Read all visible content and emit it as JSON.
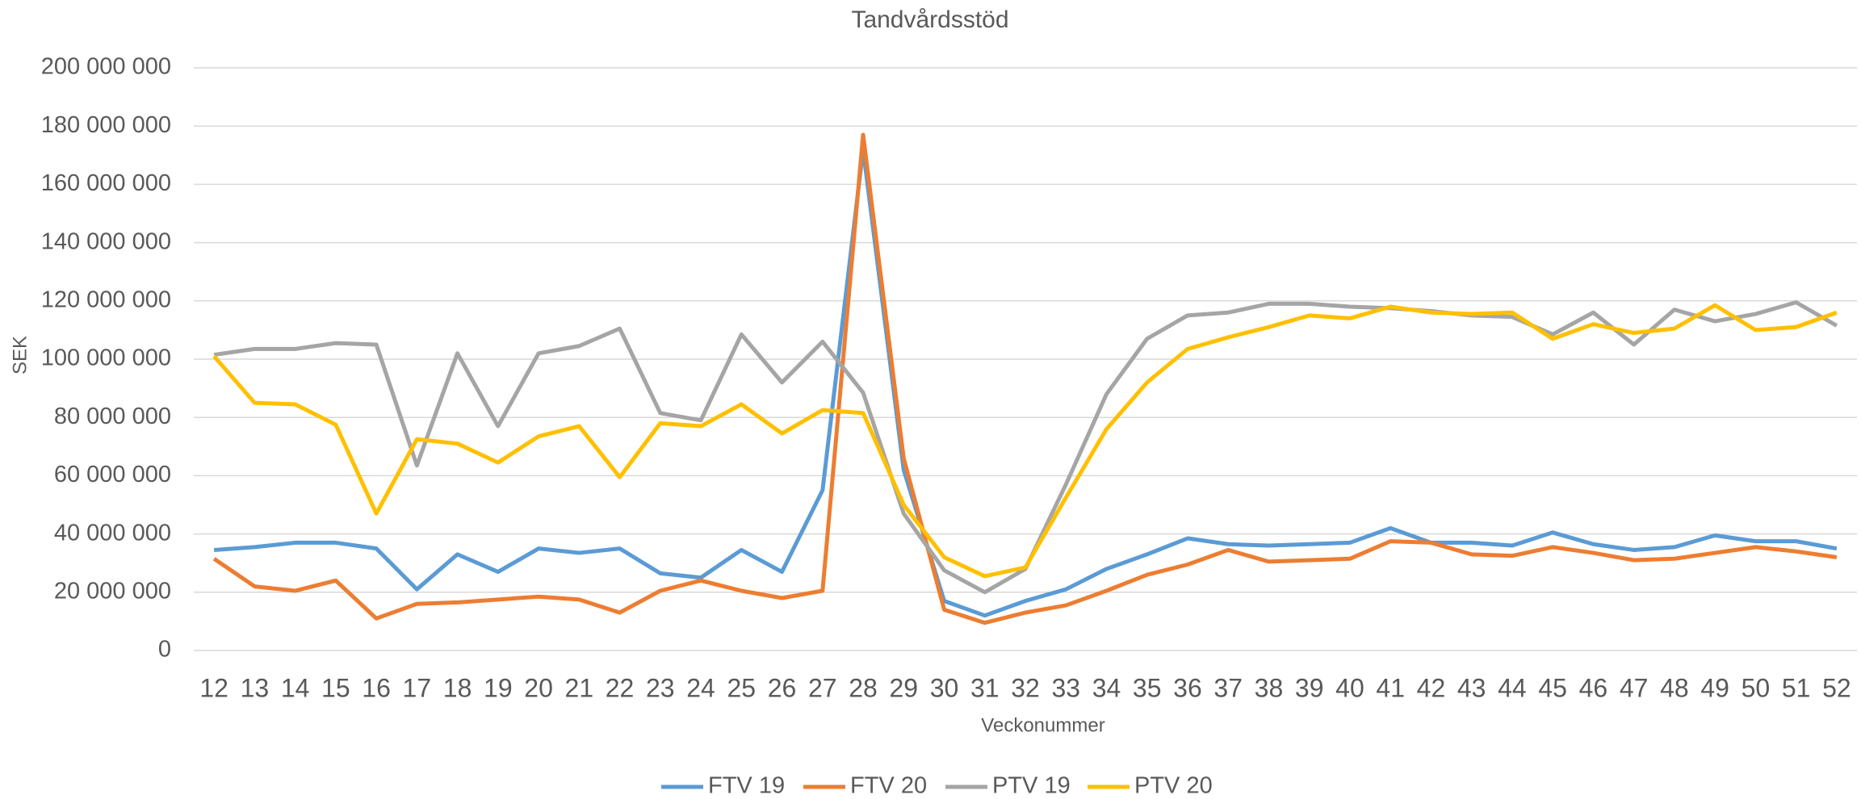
{
  "chart_data": {
    "type": "line",
    "title": "Tandvårdsstöd",
    "x_label": "Veckonummer",
    "y_label": "SEK",
    "categories": [
      "12",
      "13",
      "14",
      "15",
      "16",
      "17",
      "18",
      "19",
      "20",
      "21",
      "22",
      "23",
      "24",
      "25",
      "26",
      "27",
      "28",
      "29",
      "30",
      "31",
      "32",
      "33",
      "34",
      "35",
      "36",
      "37",
      "38",
      "39",
      "40",
      "41",
      "42",
      "43",
      "44",
      "45",
      "46",
      "47",
      "48",
      "49",
      "50",
      "51",
      "52"
    ],
    "series": [
      {
        "name": "FTV 19",
        "color": "#5b9bd5",
        "values": [
          34500000,
          35500000,
          37000000,
          37000000,
          35000000,
          21000000,
          33000000,
          27000000,
          35000000,
          33500000,
          35000000,
          26500000,
          25000000,
          34500000,
          27000000,
          55000000,
          172000000,
          62000000,
          17000000,
          12000000,
          17000000,
          21000000,
          28000000,
          33000000,
          38500000,
          36500000,
          36000000,
          36500000,
          37000000,
          42000000,
          37000000,
          37000000,
          36000000,
          40500000,
          36500000,
          34500000,
          35500000,
          39500000,
          37500000,
          37500000,
          35000000
        ]
      },
      {
        "name": "FTV 20",
        "color": "#ed7d31",
        "values": [
          31500000,
          22000000,
          20500000,
          24000000,
          11000000,
          16000000,
          16500000,
          17500000,
          18500000,
          17500000,
          13000000,
          20500000,
          24000000,
          20500000,
          18000000,
          20500000,
          177000000,
          66000000,
          14000000,
          9500000,
          13000000,
          15500000,
          20500000,
          26000000,
          29500000,
          34500000,
          30500000,
          31000000,
          31500000,
          37500000,
          37000000,
          33000000,
          32500000,
          35500000,
          33500000,
          31000000,
          31500000,
          33500000,
          35500000,
          34000000,
          32000000
        ]
      },
      {
        "name": "PTV 19",
        "color": "#a5a5a5",
        "values": [
          101500000,
          103500000,
          103500000,
          105500000,
          105000000,
          63500000,
          102000000,
          77000000,
          102000000,
          104500000,
          110500000,
          81500000,
          79000000,
          108500000,
          92000000,
          106000000,
          88500000,
          47000000,
          27500000,
          20000000,
          28000000,
          57000000,
          88000000,
          107000000,
          115000000,
          116000000,
          119000000,
          119000000,
          118000000,
          117500000,
          116500000,
          115000000,
          114500000,
          108500000,
          116000000,
          105000000,
          117000000,
          113000000,
          115500000,
          119500000,
          111500000
        ]
      },
      {
        "name": "PTV 20",
        "color": "#ffc000",
        "values": [
          101000000,
          85000000,
          84500000,
          77500000,
          47000000,
          72500000,
          71000000,
          64500000,
          73500000,
          77000000,
          59500000,
          78000000,
          77000000,
          84500000,
          74500000,
          82500000,
          81500000,
          50000000,
          32000000,
          25500000,
          28500000,
          52500000,
          76000000,
          92000000,
          103500000,
          107500000,
          111000000,
          115000000,
          114000000,
          118000000,
          116000000,
          115500000,
          116000000,
          107000000,
          112000000,
          109000000,
          110500000,
          118500000,
          110000000,
          111000000,
          116000000
        ]
      }
    ],
    "ylim": [
      0,
      200000000
    ],
    "yticks": [
      {
        "value": 0,
        "label": "0"
      },
      {
        "value": 20000000,
        "label": "20 000 000"
      },
      {
        "value": 40000000,
        "label": "40 000 000"
      },
      {
        "value": 60000000,
        "label": "60 000 000"
      },
      {
        "value": 80000000,
        "label": "80 000 000"
      },
      {
        "value": 100000000,
        "label": "100 000 000"
      },
      {
        "value": 120000000,
        "label": "120 000 000"
      },
      {
        "value": 140000000,
        "label": "140 000 000"
      },
      {
        "value": 160000000,
        "label": "160 000 000"
      },
      {
        "value": 180000000,
        "label": "180 000 000"
      },
      {
        "value": 200000000,
        "label": "200 000 000"
      }
    ],
    "grid": true,
    "legend": "bottom"
  }
}
